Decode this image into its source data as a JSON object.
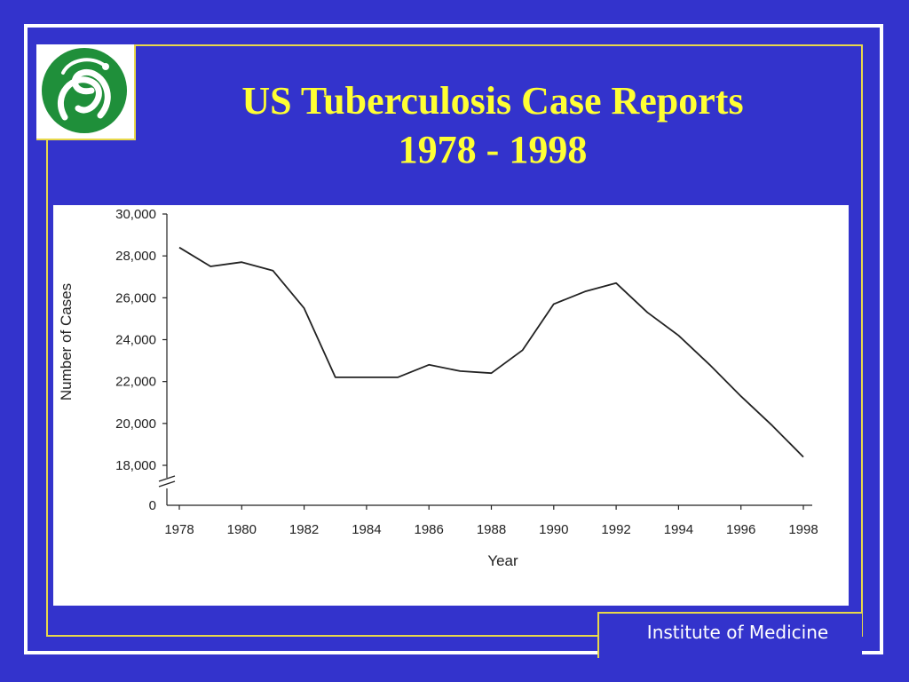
{
  "slide": {
    "title_line1": "US Tuberculosis Case Reports",
    "title_line2": "1978 - 1998",
    "footer": "Institute of Medicine",
    "logo_icon": "iom-serpent-logo-icon",
    "colors": {
      "background": "#3333cc",
      "title": "#ffff33",
      "rule": "#e8d84a",
      "logo": "#1f8f3a"
    }
  },
  "chart_data": {
    "type": "line",
    "title": "",
    "xlabel": "Year",
    "ylabel": "Number of Cases",
    "x": [
      1978,
      1979,
      1980,
      1981,
      1982,
      1983,
      1984,
      1985,
      1986,
      1987,
      1988,
      1989,
      1990,
      1991,
      1992,
      1993,
      1994,
      1995,
      1996,
      1997,
      1998
    ],
    "series": [
      {
        "values": [
          28400,
          27500,
          27700,
          27300,
          25500,
          22200,
          22200,
          22200,
          22800,
          22500,
          22400,
          23500,
          25700,
          26300,
          26700,
          25300,
          24200,
          22800,
          21300,
          19900,
          18400
        ]
      }
    ],
    "xticks": [
      "1978",
      "1980",
      "1982",
      "1984",
      "1986",
      "1988",
      "1990",
      "1992",
      "1994",
      "1996",
      "1998"
    ],
    "yticks": [
      "30,000",
      "28,000",
      "26,000",
      "24,000",
      "22,000",
      "20,000",
      "18,000"
    ],
    "y_zero_label": "0",
    "ylim": [
      18000,
      30000
    ],
    "axis_break": true,
    "grid": false,
    "color": "#222222"
  }
}
